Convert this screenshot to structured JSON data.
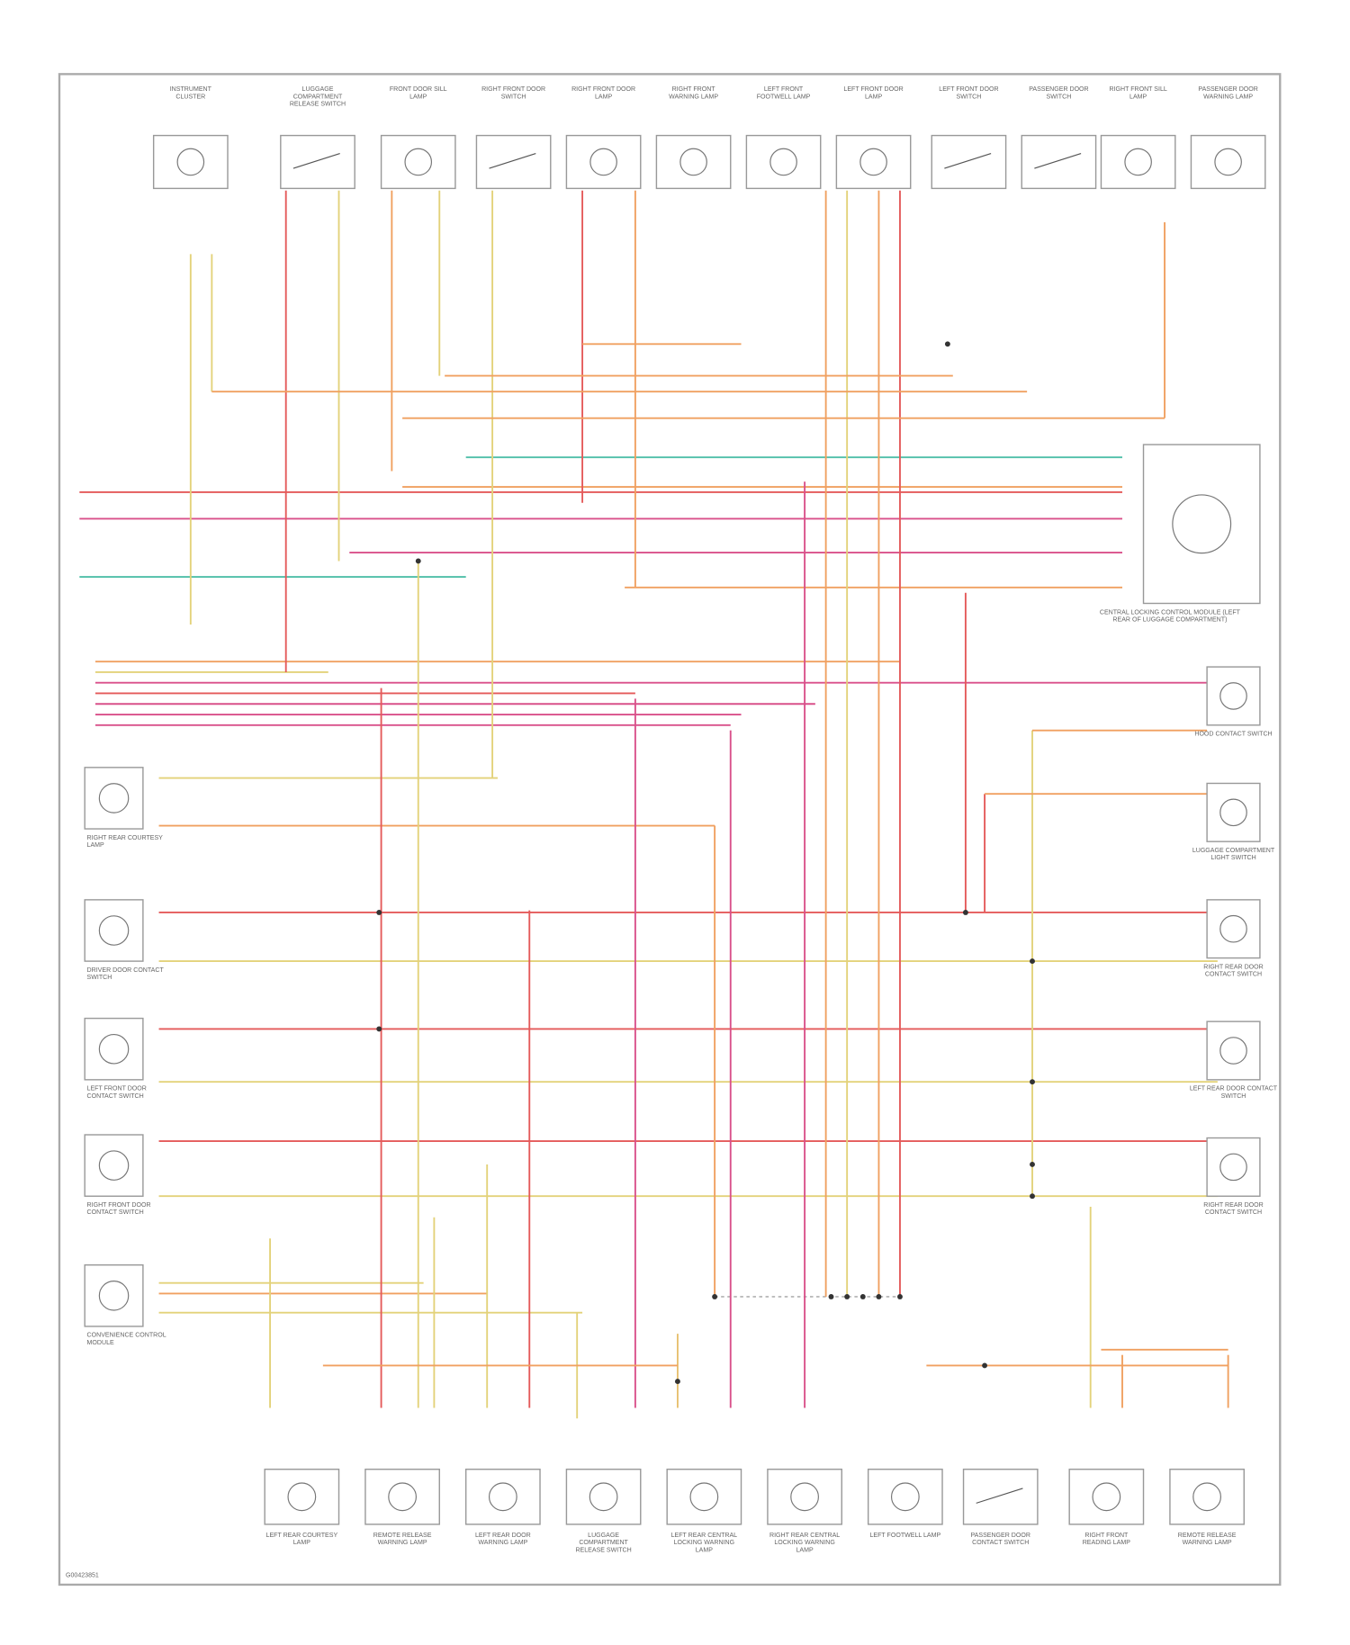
{
  "diagram": {
    "top_components": [
      "INSTRUMENT CLUSTER",
      "LUGGAGE COMPARTMENT RELEASE SWITCH",
      "FRONT DOOR SILL LAMP",
      "RIGHT FRONT DOOR SWITCH",
      "RIGHT FRONT DOOR LAMP",
      "RIGHT FRONT WARNING LAMP",
      "LEFT FRONT FOOTWELL LAMP",
      "LEFT FRONT DOOR LAMP",
      "LEFT FRONT DOOR SWITCH",
      "PASSENGER DOOR SWITCH",
      "RIGHT FRONT SILL LAMP",
      "PASSENGER DOOR WARNING LAMP"
    ],
    "bottom_components": [
      "LEFT REAR COURTESY LAMP",
      "REMOTE RELEASE WARNING LAMP",
      "LEFT REAR DOOR WARNING LAMP",
      "LUGGAGE COMPARTMENT RELEASE SWITCH",
      "LEFT REAR CENTRAL LOCKING WARNING LAMP",
      "RIGHT REAR CENTRAL LOCKING WARNING LAMP",
      "LEFT FOOTWELL LAMP",
      "PASSENGER DOOR CONTACT SWITCH",
      "RIGHT FRONT READING LAMP",
      "REMOTE RELEASE WARNING LAMP"
    ],
    "right_components": [
      "CENTRAL LOCKING CONTROL MODULE (LEFT REAR OF LUGGAGE COMPARTMENT)",
      "HOOD CONTACT SWITCH",
      "LUGGAGE COMPARTMENT LIGHT SWITCH",
      "RIGHT REAR DOOR CONTACT SWITCH",
      "LEFT REAR DOOR CONTACT SWITCH",
      "RIGHT REAR DOOR CONTACT SWITCH"
    ],
    "left_components": [
      "RIGHT REAR COURTESY LAMP",
      "DRIVER DOOR CONTACT SWITCH",
      "LEFT FRONT DOOR CONTACT SWITCH",
      "RIGHT FRONT DOOR CONTACT SWITCH",
      "CONVENIENCE CONTROL MODULE"
    ],
    "footer_code": "G00423851"
  }
}
